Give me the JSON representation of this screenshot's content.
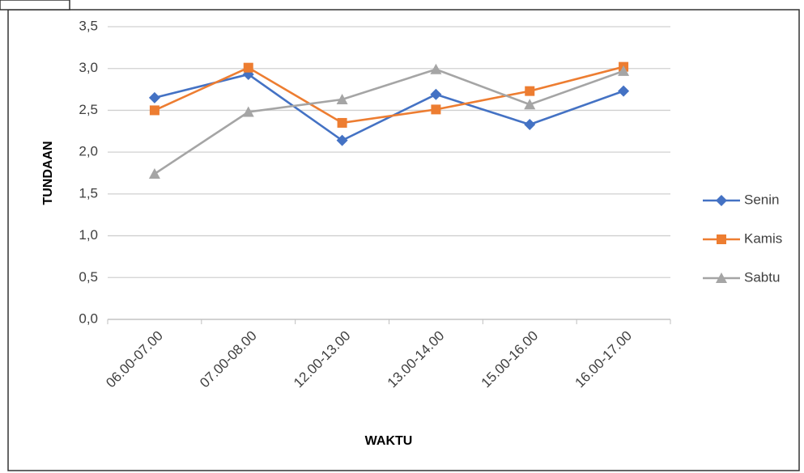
{
  "chart_data": {
    "type": "line",
    "x_label": "WAKTU",
    "y_label": "TUNDAAN",
    "categories": [
      "06.00-07.00",
      "07.00-08.00",
      "12.00-13.00",
      "13.00-14.00",
      "15.00-16.00",
      "16.00-17.00"
    ],
    "series": [
      {
        "name": "Senin",
        "color": "#4472c4",
        "marker": "diamond",
        "values": [
          2.65,
          2.93,
          2.14,
          2.69,
          2.33,
          2.73
        ]
      },
      {
        "name": "Kamis",
        "color": "#ed7d31",
        "marker": "square",
        "values": [
          2.5,
          3.01,
          2.35,
          2.51,
          2.73,
          3.02
        ]
      },
      {
        "name": "Sabtu",
        "color": "#a5a5a5",
        "marker": "triangle",
        "values": [
          1.74,
          2.48,
          2.63,
          2.99,
          2.57,
          2.97
        ]
      }
    ],
    "ylim": [
      0,
      3.5
    ],
    "yticks": [
      {
        "value": 0,
        "label": "0,0"
      },
      {
        "value": 0.5,
        "label": "0,5"
      },
      {
        "value": 1,
        "label": "1,0"
      },
      {
        "value": 1.5,
        "label": "1,5"
      },
      {
        "value": 2,
        "label": "2,0"
      },
      {
        "value": 2.5,
        "label": "2,5"
      },
      {
        "value": 3,
        "label": "3,0"
      },
      {
        "value": 3.5,
        "label": "3,5"
      }
    ],
    "grid": true,
    "legend": "right"
  }
}
